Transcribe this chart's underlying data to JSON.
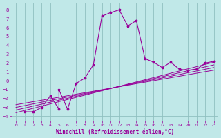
{
  "xlabel": "Windchill (Refroidissement éolien,°C)",
  "bg_color": "#c0e8e8",
  "grid_color": "#90c0c0",
  "line_color": "#990099",
  "xlim": [
    -0.5,
    23.5
  ],
  "ylim": [
    -4.5,
    8.8
  ],
  "xticks": [
    0,
    1,
    2,
    3,
    4,
    5,
    6,
    7,
    8,
    9,
    10,
    11,
    12,
    13,
    14,
    15,
    16,
    17,
    18,
    19,
    20,
    21,
    22,
    23
  ],
  "yticks": [
    -4,
    -3,
    -2,
    -1,
    0,
    1,
    2,
    3,
    4,
    5,
    6,
    7,
    8
  ],
  "main_x": [
    1,
    2,
    3,
    4,
    5,
    5,
    6,
    7,
    8,
    9,
    10,
    11,
    12,
    13,
    14,
    15,
    16,
    17,
    18,
    19,
    20,
    21,
    22,
    23
  ],
  "main_y": [
    -3.5,
    -3.5,
    -3.0,
    -1.7,
    -3.2,
    -1.0,
    -3.2,
    -0.3,
    0.3,
    1.8,
    7.3,
    7.7,
    8.0,
    6.2,
    6.8,
    2.5,
    2.1,
    1.5,
    2.1,
    1.3,
    1.2,
    1.3,
    2.0,
    2.2
  ],
  "reg_lines": [
    {
      "x": [
        0,
        23
      ],
      "y": [
        -3.6,
        2.1
      ]
    },
    {
      "x": [
        0,
        23
      ],
      "y": [
        -3.3,
        1.8
      ]
    },
    {
      "x": [
        0,
        23
      ],
      "y": [
        -3.0,
        1.5
      ]
    },
    {
      "x": [
        0,
        23
      ],
      "y": [
        -2.7,
        1.2
      ]
    }
  ]
}
